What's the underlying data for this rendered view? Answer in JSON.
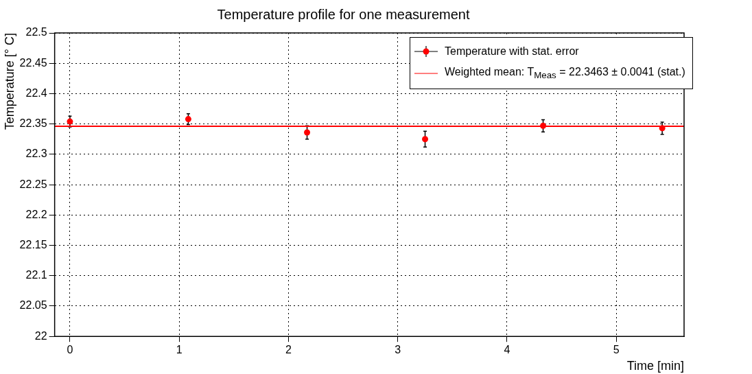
{
  "chart_data": {
    "type": "scatter",
    "title": "Temperature profile for one measurement",
    "xlabel": "Time [min]",
    "ylabel": "Temperature [° C]",
    "series": [
      {
        "name": "Temperature with stat. error",
        "color": "#ff0000",
        "x": [
          0,
          1.083,
          2.17,
          3.25,
          4.33,
          5.42
        ],
        "values": [
          22.354,
          22.358,
          22.336,
          22.325,
          22.347,
          22.343
        ],
        "errors": [
          0.009,
          0.009,
          0.011,
          0.013,
          0.01,
          0.01
        ]
      },
      {
        "name": "Weighted mean: T$_{Meas}$ = 22.3463 ± 0.0041 (stat.)",
        "type": "line",
        "color": "#ff0000",
        "marker": "none",
        "x": [
          -0.14,
          5.62
        ],
        "values": [
          22.3463,
          22.3463
        ]
      }
    ],
    "xlim": [
      -0.14,
      5.62
    ],
    "xticks": [
      0,
      1,
      2,
      3,
      4,
      5
    ],
    "ylim": [
      22,
      22.5
    ],
    "yticks": [
      22,
      22.05,
      22.1,
      22.15,
      22.2,
      22.25,
      22.3,
      22.35,
      22.4,
      22.45,
      22.5
    ],
    "grid": true,
    "legend": "top right",
    "marker": "circle"
  }
}
